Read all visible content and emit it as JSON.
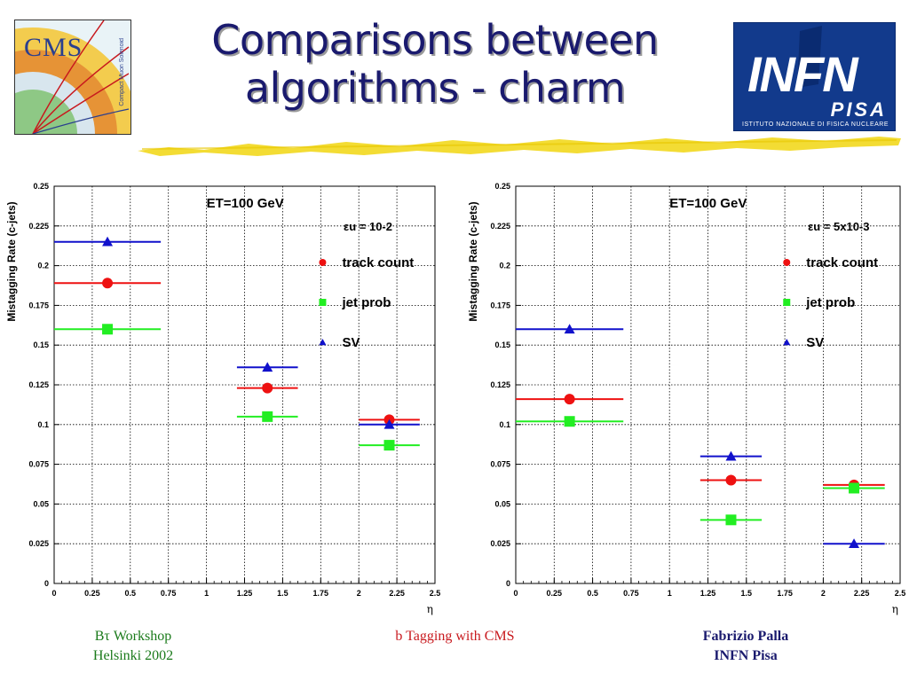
{
  "slide": {
    "title_line1": "Comparisons between",
    "title_line2": "algorithms - charm"
  },
  "logos": {
    "cms": {
      "text": "CMS",
      "subtext": "Compact Muon Solenoid"
    },
    "infn": {
      "main": "INFN",
      "city": "PISA",
      "institute": "ISTITUTO NAZIONALE DI FISICA NUCLEARE"
    }
  },
  "footer": {
    "left_line1": "Bτ Workshop",
    "left_line2": "Helsinki 2002",
    "center": "b Tagging with CMS",
    "right_line1": "Fabrizio Palla",
    "right_line2": "INFN Pisa"
  },
  "colors": {
    "red": "#ee1111",
    "green": "#22ee22",
    "blue": "#1111cc",
    "title": "#1a1a6e",
    "underline": "#f2d81e"
  },
  "chart_data": [
    {
      "type": "scatter",
      "annotation": "ET=100 GeV",
      "efficiency_label": "εu = 10-2",
      "ylabel": "Mistagging Rate (c-jets)",
      "xlabel": "η",
      "xlim": [
        0,
        2.5
      ],
      "ylim": [
        0,
        0.25
      ],
      "xticks": [
        "0",
        "0.25",
        "0.5",
        "0.75",
        "1",
        "1.25",
        "1.5",
        "1.75",
        "2",
        "2.25",
        "2.5"
      ],
      "yticks": [
        "0",
        "0.025",
        "0.05",
        "0.075",
        "0.1",
        "0.125",
        "0.15",
        "0.175",
        "0.2",
        "0.225",
        "0.25"
      ],
      "grid": true,
      "legend_position": "top-right",
      "series": [
        {
          "name": "track count",
          "marker": "circle",
          "color": "#ee1111",
          "points": [
            {
              "x": 0.35,
              "xlo": 0,
              "xhi": 0.7,
              "y": 0.189
            },
            {
              "x": 1.4,
              "xlo": 1.2,
              "xhi": 1.6,
              "y": 0.123
            },
            {
              "x": 2.2,
              "xlo": 2.0,
              "xhi": 2.4,
              "y": 0.103
            }
          ]
        },
        {
          "name": "jet prob",
          "marker": "square",
          "color": "#22ee22",
          "points": [
            {
              "x": 0.35,
              "xlo": 0,
              "xhi": 0.7,
              "y": 0.16
            },
            {
              "x": 1.4,
              "xlo": 1.2,
              "xhi": 1.6,
              "y": 0.105
            },
            {
              "x": 2.2,
              "xlo": 2.0,
              "xhi": 2.4,
              "y": 0.087
            }
          ]
        },
        {
          "name": "SV",
          "marker": "triangle",
          "color": "#1111cc",
          "points": [
            {
              "x": 0.35,
              "xlo": 0,
              "xhi": 0.7,
              "y": 0.215
            },
            {
              "x": 1.4,
              "xlo": 1.2,
              "xhi": 1.6,
              "y": 0.136
            },
            {
              "x": 2.2,
              "xlo": 2.0,
              "xhi": 2.4,
              "y": 0.1
            }
          ]
        }
      ]
    },
    {
      "type": "scatter",
      "annotation": "ET=100 GeV",
      "efficiency_label": "εu = 5x10-3",
      "ylabel": "Mistagging Rate (c-jets)",
      "xlabel": "η",
      "xlim": [
        0,
        2.5
      ],
      "ylim": [
        0,
        0.25
      ],
      "xticks": [
        "0",
        "0.25",
        "0.5",
        "0.75",
        "1",
        "1.25",
        "1.5",
        "1.75",
        "2",
        "2.25",
        "2.5"
      ],
      "yticks": [
        "0",
        "0.025",
        "0.05",
        "0.075",
        "0.1",
        "0.125",
        "0.15",
        "0.175",
        "0.2",
        "0.225",
        "0.25"
      ],
      "grid": true,
      "legend_position": "top-right",
      "series": [
        {
          "name": "track count",
          "marker": "circle",
          "color": "#ee1111",
          "points": [
            {
              "x": 0.35,
              "xlo": 0,
              "xhi": 0.7,
              "y": 0.116
            },
            {
              "x": 1.4,
              "xlo": 1.2,
              "xhi": 1.6,
              "y": 0.065
            },
            {
              "x": 2.2,
              "xlo": 2.0,
              "xhi": 2.4,
              "y": 0.062
            }
          ]
        },
        {
          "name": "jet prob",
          "marker": "square",
          "color": "#22ee22",
          "points": [
            {
              "x": 0.35,
              "xlo": 0,
              "xhi": 0.7,
              "y": 0.102
            },
            {
              "x": 1.4,
              "xlo": 1.2,
              "xhi": 1.6,
              "y": 0.04
            },
            {
              "x": 2.2,
              "xlo": 2.0,
              "xhi": 2.4,
              "y": 0.06
            }
          ]
        },
        {
          "name": "SV",
          "marker": "triangle",
          "color": "#1111cc",
          "points": [
            {
              "x": 0.35,
              "xlo": 0,
              "xhi": 0.7,
              "y": 0.16
            },
            {
              "x": 1.4,
              "xlo": 1.2,
              "xhi": 1.6,
              "y": 0.08
            },
            {
              "x": 2.2,
              "xlo": 2.0,
              "xhi": 2.4,
              "y": 0.025
            }
          ]
        }
      ]
    }
  ]
}
